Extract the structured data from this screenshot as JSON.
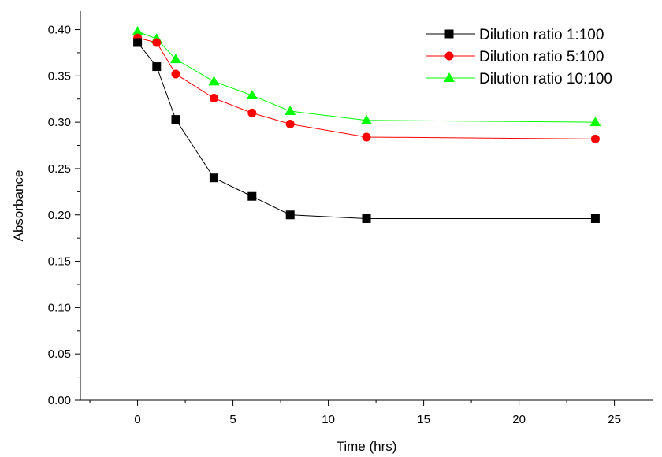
{
  "chart_data": {
    "type": "line",
    "title": "",
    "xlabel": "Time (hrs)",
    "ylabel": "Absorbance",
    "xlim": [
      -3,
      27
    ],
    "ylim": [
      0,
      0.42
    ],
    "x_ticks": [
      0,
      5,
      10,
      15,
      20,
      25
    ],
    "x_tick_labels": [
      "0",
      "5",
      "10",
      "15",
      "20",
      "25"
    ],
    "y_ticks": [
      0,
      0.05,
      0.1,
      0.15,
      0.2,
      0.25,
      0.3,
      0.35,
      0.4
    ],
    "y_tick_labels": [
      "0.00",
      "0.05",
      "0.10",
      "0.15",
      "0.20",
      "0.25",
      "0.30",
      "0.35",
      "0.40"
    ],
    "grid": false,
    "legend_position": "top-right",
    "x": [
      0,
      1,
      2,
      4,
      6,
      8,
      12,
      24
    ],
    "series": [
      {
        "name": "Dilution ratio 1:100",
        "color": "#000000",
        "marker": "square",
        "values": [
          0.386,
          0.36,
          0.303,
          0.24,
          0.22,
          0.2,
          0.196,
          0.196
        ]
      },
      {
        "name": "Dilution ratio 5:100",
        "color": "#ff0000",
        "marker": "circle",
        "values": [
          0.391,
          0.386,
          0.352,
          0.326,
          0.31,
          0.298,
          0.284,
          0.282
        ]
      },
      {
        "name": "Dilution ratio 10:100",
        "color": "#00ff00",
        "marker": "triangle",
        "values": [
          0.398,
          0.39,
          0.368,
          0.344,
          0.329,
          0.312,
          0.302,
          0.3
        ]
      }
    ]
  }
}
